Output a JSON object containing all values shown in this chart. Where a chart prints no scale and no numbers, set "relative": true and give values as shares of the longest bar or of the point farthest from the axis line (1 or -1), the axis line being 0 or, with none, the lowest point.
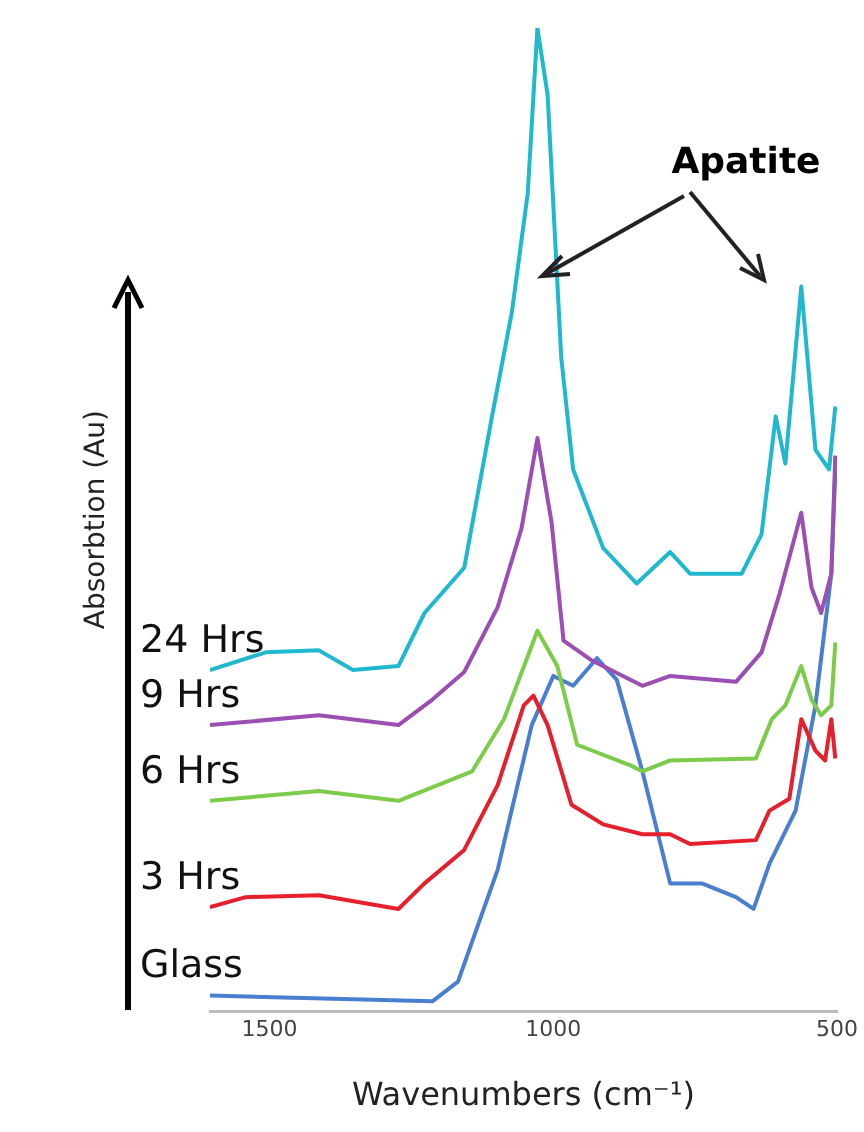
{
  "chart_data": {
    "type": "line",
    "xlabel": "Wavenumbers (cm⁻¹)",
    "ylabel": "Absorbtion (Au)",
    "relative": true,
    "xlim": [
      1605,
      500
    ],
    "xticks": [
      1500,
      1000,
      500
    ],
    "grid": false,
    "marker": "none",
    "line_style": "solid",
    "annotations": [
      "Apatite"
    ],
    "series": [
      {
        "name": "24 Hrs",
        "color": "#1fb8cc",
        "x": [
          1605,
          1507,
          1413,
          1353,
          1273,
          1227,
          1157,
          1108,
          1073,
          1045,
          1028,
          1010,
          986,
          965,
          912,
          853,
          794,
          759,
          668,
          633,
          608,
          591,
          563,
          538,
          514,
          503
        ],
        "values": [
          0.347,
          0.365,
          0.367,
          0.347,
          0.351,
          0.405,
          0.451,
          0.605,
          0.711,
          0.832,
          1,
          0.932,
          0.665,
          0.551,
          0.471,
          0.435,
          0.467,
          0.445,
          0.445,
          0.485,
          0.605,
          0.557,
          0.737,
          0.571,
          0.551,
          0.615
        ]
      },
      {
        "name": "9 Hrs",
        "color": "#9b4fb2",
        "x": [
          1605,
          1413,
          1273,
          1213,
          1157,
          1098,
          1056,
          1028,
          1003,
          982,
          933,
          843,
          794,
          678,
          633,
          601,
          563,
          545,
          528,
          510,
          503
        ],
        "values": [
          0.291,
          0.301,
          0.291,
          0.317,
          0.345,
          0.411,
          0.491,
          0.583,
          0.497,
          0.377,
          0.357,
          0.331,
          0.341,
          0.335,
          0.365,
          0.425,
          0.507,
          0.431,
          0.405,
          0.445,
          0.565
        ]
      },
      {
        "name": "6 Hrs",
        "color": "#7ccb4b",
        "x": [
          1605,
          1413,
          1273,
          1143,
          1087,
          1028,
          993,
          958,
          864,
          843,
          794,
          643,
          615,
          591,
          563,
          545,
          528,
          510,
          503
        ],
        "values": [
          0.214,
          0.224,
          0.214,
          0.244,
          0.297,
          0.387,
          0.351,
          0.271,
          0.25,
          0.244,
          0.255,
          0.257,
          0.297,
          0.311,
          0.351,
          0.317,
          0.301,
          0.311,
          0.375
        ]
      },
      {
        "name": "3 Hrs",
        "color": "#e5202c",
        "x": [
          1605,
          1542,
          1413,
          1273,
          1227,
          1157,
          1098,
          1052,
          1035,
          1010,
          968,
          912,
          843,
          794,
          759,
          643,
          619,
          584,
          563,
          538,
          521,
          510,
          503
        ],
        "values": [
          0.106,
          0.116,
          0.118,
          0.104,
          0.13,
          0.164,
          0.23,
          0.311,
          0.321,
          0.291,
          0.21,
          0.19,
          0.18,
          0.18,
          0.17,
          0.174,
          0.204,
          0.216,
          0.297,
          0.265,
          0.255,
          0.297,
          0.257
        ]
      },
      {
        "name": "Glass",
        "color": "#4a7fcf",
        "x": [
          1605,
          1213,
          1168,
          1098,
          1038,
          1000,
          965,
          923,
          888,
          843,
          794,
          738,
          678,
          647,
          619,
          573,
          538,
          510,
          503
        ],
        "values": [
          0.016,
          0.01,
          0.03,
          0.144,
          0.291,
          0.341,
          0.331,
          0.359,
          0.337,
          0.244,
          0.13,
          0.13,
          0.116,
          0.104,
          0.15,
          0.204,
          0.311,
          0.445,
          0.55
        ]
      }
    ]
  }
}
